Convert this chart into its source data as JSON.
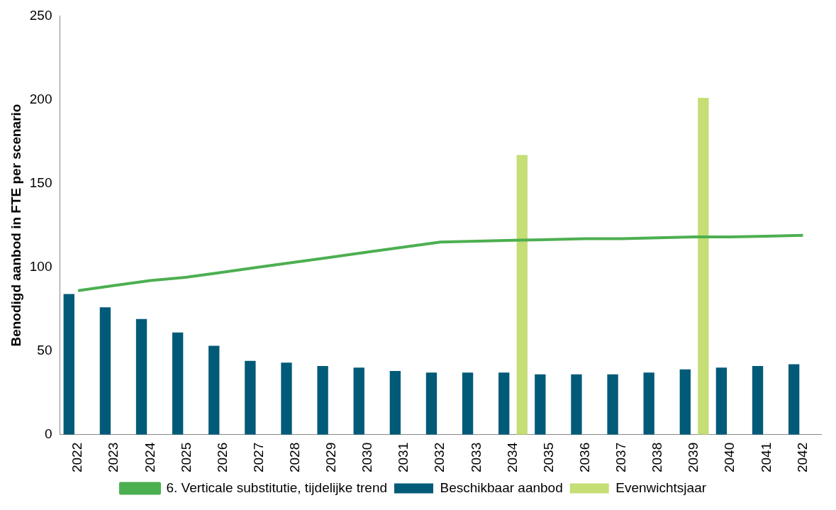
{
  "chart_data": {
    "type": "bar",
    "ylabel": "Benodigd aanbod in FTE per scenario",
    "categories": [
      "2022",
      "2023",
      "2024",
      "2025",
      "2026",
      "2027",
      "2028",
      "2029",
      "2030",
      "2031",
      "2032",
      "2033",
      "2034",
      "2035",
      "2036",
      "2037",
      "2038",
      "2039",
      "2040",
      "2041",
      "2042"
    ],
    "series": [
      {
        "name": "Beschikbaar aanbod",
        "color": "#005a78",
        "values": [
          84,
          76,
          69,
          61,
          53,
          44,
          43,
          41,
          40,
          38,
          37,
          37,
          37,
          36,
          36,
          36,
          37,
          39,
          40,
          41,
          42
        ]
      },
      {
        "name": "Evenwichtsjaar",
        "color": "#c5de75",
        "values": [
          null,
          null,
          null,
          null,
          null,
          null,
          null,
          null,
          null,
          null,
          null,
          null,
          167,
          null,
          null,
          null,
          null,
          201,
          null,
          null,
          null
        ]
      },
      {
        "name": "6. Verticale substitutie, tijdelijke trend",
        "type": "line",
        "color": "#4caf50",
        "values": [
          86,
          89,
          92,
          94,
          97,
          100,
          103,
          106,
          109,
          112,
          115,
          115.5,
          116,
          116.5,
          117,
          117,
          117.5,
          118,
          118,
          118.5,
          119
        ]
      }
    ],
    "ylim": [
      0,
      250
    ],
    "yticks": [
      0,
      50,
      100,
      150,
      200,
      250
    ],
    "grid": false,
    "legend": "bottom",
    "marker": "none"
  }
}
